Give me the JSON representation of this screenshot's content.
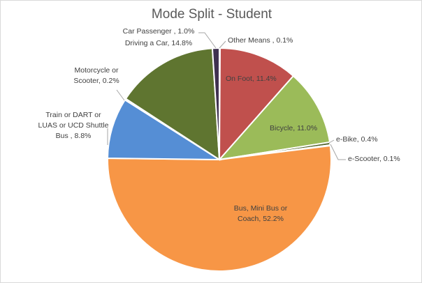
{
  "chart_data": {
    "type": "pie",
    "title": "Mode Split - Student",
    "slices": [
      {
        "label": "Other Means",
        "value": 0.1,
        "label_lines": [
          "Other Means , 0.1%"
        ],
        "color": "#8064a2"
      },
      {
        "label": "On Foot",
        "value": 11.4,
        "label_lines": [
          "On Foot, 11.4%"
        ],
        "color": "#c0504d"
      },
      {
        "label": "Bicycle",
        "value": 11.0,
        "label_lines": [
          "Bicycle, 11.0%"
        ],
        "color": "#9bbb59"
      },
      {
        "label": "e-Bike",
        "value": 0.4,
        "label_lines": [
          "e-Bike, 0.4%"
        ],
        "color": "#4f6228"
      },
      {
        "label": "e-Scooter",
        "value": 0.1,
        "label_lines": [
          "e-Scooter, 0.1%"
        ],
        "color": "#4bacc6"
      },
      {
        "label": "Bus, Mini Bus or Coach",
        "value": 52.2,
        "label_lines": [
          "Bus, Mini Bus or",
          "Coach, 52.2%"
        ],
        "color": "#f79646"
      },
      {
        "label": "Train or DART or LUAS or UCD Shuttle Bus",
        "value": 8.8,
        "label_lines": [
          "Train or DART or",
          "LUAS or UCD Shuttle",
          "Bus , 8.8%"
        ],
        "color": "#558ed5"
      },
      {
        "label": "Motorcycle or Scooter",
        "value": 0.2,
        "label_lines": [
          "Motorcycle or",
          "Scooter, 0.2%"
        ],
        "color": "#2c4d75"
      },
      {
        "label": "Driving a Car",
        "value": 14.8,
        "label_lines": [
          "Driving a Car, 14.8%"
        ],
        "color": "#5f7530"
      },
      {
        "label": "Car Passenger",
        "value": 1.0,
        "label_lines": [
          "Car Passenger , 1.0%"
        ],
        "color": "#3f3151"
      }
    ],
    "legend": "none"
  }
}
